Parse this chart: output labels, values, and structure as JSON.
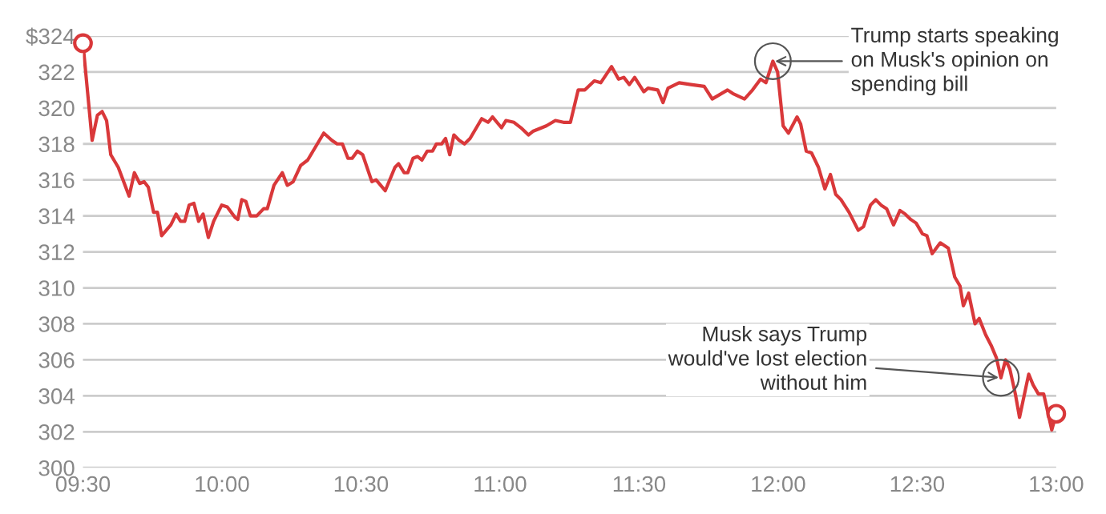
{
  "chart_data": {
    "type": "line",
    "xlim": [
      9.5,
      13
    ],
    "ylim": [
      300,
      324
    ],
    "xticks": [
      {
        "value": 9.5,
        "label": "09:30"
      },
      {
        "value": 10,
        "label": "10:00"
      },
      {
        "value": 10.5,
        "label": "10:30"
      },
      {
        "value": 11,
        "label": "11:00"
      },
      {
        "value": 11.5,
        "label": "11:30"
      },
      {
        "value": 12,
        "label": "12:00"
      },
      {
        "value": 12.5,
        "label": "12:30"
      },
      {
        "value": 13,
        "label": "13:00"
      }
    ],
    "yticks": [
      300,
      302,
      304,
      306,
      308,
      310,
      312,
      314,
      316,
      318,
      320,
      322,
      {
        "value": 324,
        "label": "$324"
      }
    ],
    "grid": "y",
    "legend": false,
    "series": [
      {
        "color": "#d9383a",
        "marker": "none",
        "x": [
          9.5,
          9.533,
          9.552,
          9.569,
          9.585,
          9.6,
          9.627,
          9.666,
          9.685,
          9.704,
          9.72,
          9.735,
          9.754,
          9.768,
          9.783,
          9.816,
          9.835,
          9.851,
          9.866,
          9.882,
          9.899,
          9.916,
          9.932,
          9.951,
          9.97,
          9.999,
          10.019,
          10.048,
          10.057,
          10.071,
          10.086,
          10.102,
          10.125,
          10.15,
          10.163,
          10.187,
          10.217,
          10.235,
          10.256,
          10.283,
          10.308,
          10.366,
          10.395,
          10.414,
          10.433,
          10.453,
          10.468,
          10.487,
          10.506,
          10.539,
          10.554,
          10.587,
          10.622,
          10.635,
          10.655,
          10.668,
          10.687,
          10.703,
          10.719,
          10.738,
          10.757,
          10.771,
          10.79,
          10.804,
          10.819,
          10.834,
          10.853,
          10.872,
          10.892,
          10.934,
          10.957,
          10.973,
          11.005,
          11.021,
          11.05,
          11.075,
          11.102,
          11.118,
          11.166,
          11.199,
          11.228,
          11.253,
          11.281,
          11.305,
          11.339,
          11.362,
          11.401,
          11.426,
          11.445,
          11.465,
          11.484,
          11.517,
          11.532,
          11.567,
          11.586,
          11.604,
          11.644,
          11.686,
          11.734,
          11.763,
          11.818,
          11.837,
          11.879,
          11.908,
          11.937,
          11.956,
          11.981,
          11.998,
          12.018,
          12.037,
          12.068,
          12.081,
          12.101,
          12.12,
          12.145,
          12.168,
          12.188,
          12.207,
          12.226,
          12.255,
          12.288,
          12.307,
          12.332,
          12.351,
          12.37,
          12.39,
          12.415,
          12.438,
          12.457,
          12.477,
          12.496,
          12.519,
          12.535,
          12.554,
          12.583,
          12.612,
          12.635,
          12.654,
          12.666,
          12.685,
          12.708,
          12.723,
          12.746,
          12.766,
          12.785,
          12.801,
          12.818,
          12.833,
          12.853,
          12.868,
          12.901,
          12.917,
          12.936,
          12.955,
          12.968,
          12.984,
          13.0
        ],
        "values": [
          323.6,
          318.2,
          319.6,
          319.8,
          319.3,
          317.4,
          316.7,
          315.1,
          316.4,
          315.8,
          315.9,
          315.6,
          314.2,
          314.2,
          312.9,
          313.5,
          314.1,
          313.7,
          313.7,
          314.6,
          314.7,
          313.7,
          314.1,
          312.8,
          313.7,
          314.6,
          314.5,
          313.9,
          313.8,
          314.9,
          314.8,
          314.0,
          314.0,
          314.4,
          314.4,
          315.7,
          316.4,
          315.7,
          315.9,
          316.8,
          317.1,
          318.6,
          318.2,
          318.0,
          318.0,
          317.2,
          317.2,
          317.6,
          317.4,
          315.9,
          316.0,
          315.4,
          316.7,
          316.9,
          316.4,
          316.4,
          317.2,
          317.3,
          317.1,
          317.6,
          317.6,
          318.0,
          318.0,
          318.3,
          317.4,
          318.5,
          318.2,
          318.0,
          318.3,
          319.4,
          319.2,
          319.5,
          318.9,
          319.3,
          319.2,
          318.9,
          318.5,
          318.7,
          319.0,
          319.3,
          319.2,
          319.2,
          321.0,
          321.0,
          321.5,
          321.4,
          322.3,
          321.6,
          321.7,
          321.3,
          321.7,
          320.9,
          321.1,
          321.0,
          320.3,
          321.1,
          321.4,
          321.3,
          321.2,
          320.5,
          321.0,
          320.8,
          320.5,
          321.0,
          321.6,
          321.4,
          322.6,
          322.0,
          319.0,
          318.6,
          319.5,
          319.1,
          317.6,
          317.5,
          316.7,
          315.5,
          316.3,
          315.2,
          314.9,
          314.2,
          313.2,
          313.4,
          314.6,
          314.9,
          314.6,
          314.4,
          313.5,
          314.3,
          314.1,
          313.8,
          313.6,
          313.0,
          312.9,
          311.9,
          312.5,
          312.2,
          310.6,
          310.1,
          309.0,
          309.7,
          308.0,
          308.3,
          307.4,
          306.8,
          306.1,
          305.0,
          306.0,
          305.5,
          304.1,
          302.8,
          305.2,
          304.6,
          304.1,
          304.1,
          303.2,
          302.1,
          303.0
        ]
      },
      {
        "type": "scatter",
        "color": "#d9383a",
        "marker": "circle",
        "x": [
          9.5,
          13.0
        ],
        "values": [
          323.6,
          303.0
        ]
      }
    ],
    "annotations": [
      {
        "text": "Trump starts speaking\non Musk's opinion on\nspending bill",
        "x": 11.981,
        "y": 322.6
      },
      {
        "text": "Musk says Trump\nwould've lost election\nwithout him",
        "x": 12.801,
        "y": 305.0
      }
    ]
  }
}
